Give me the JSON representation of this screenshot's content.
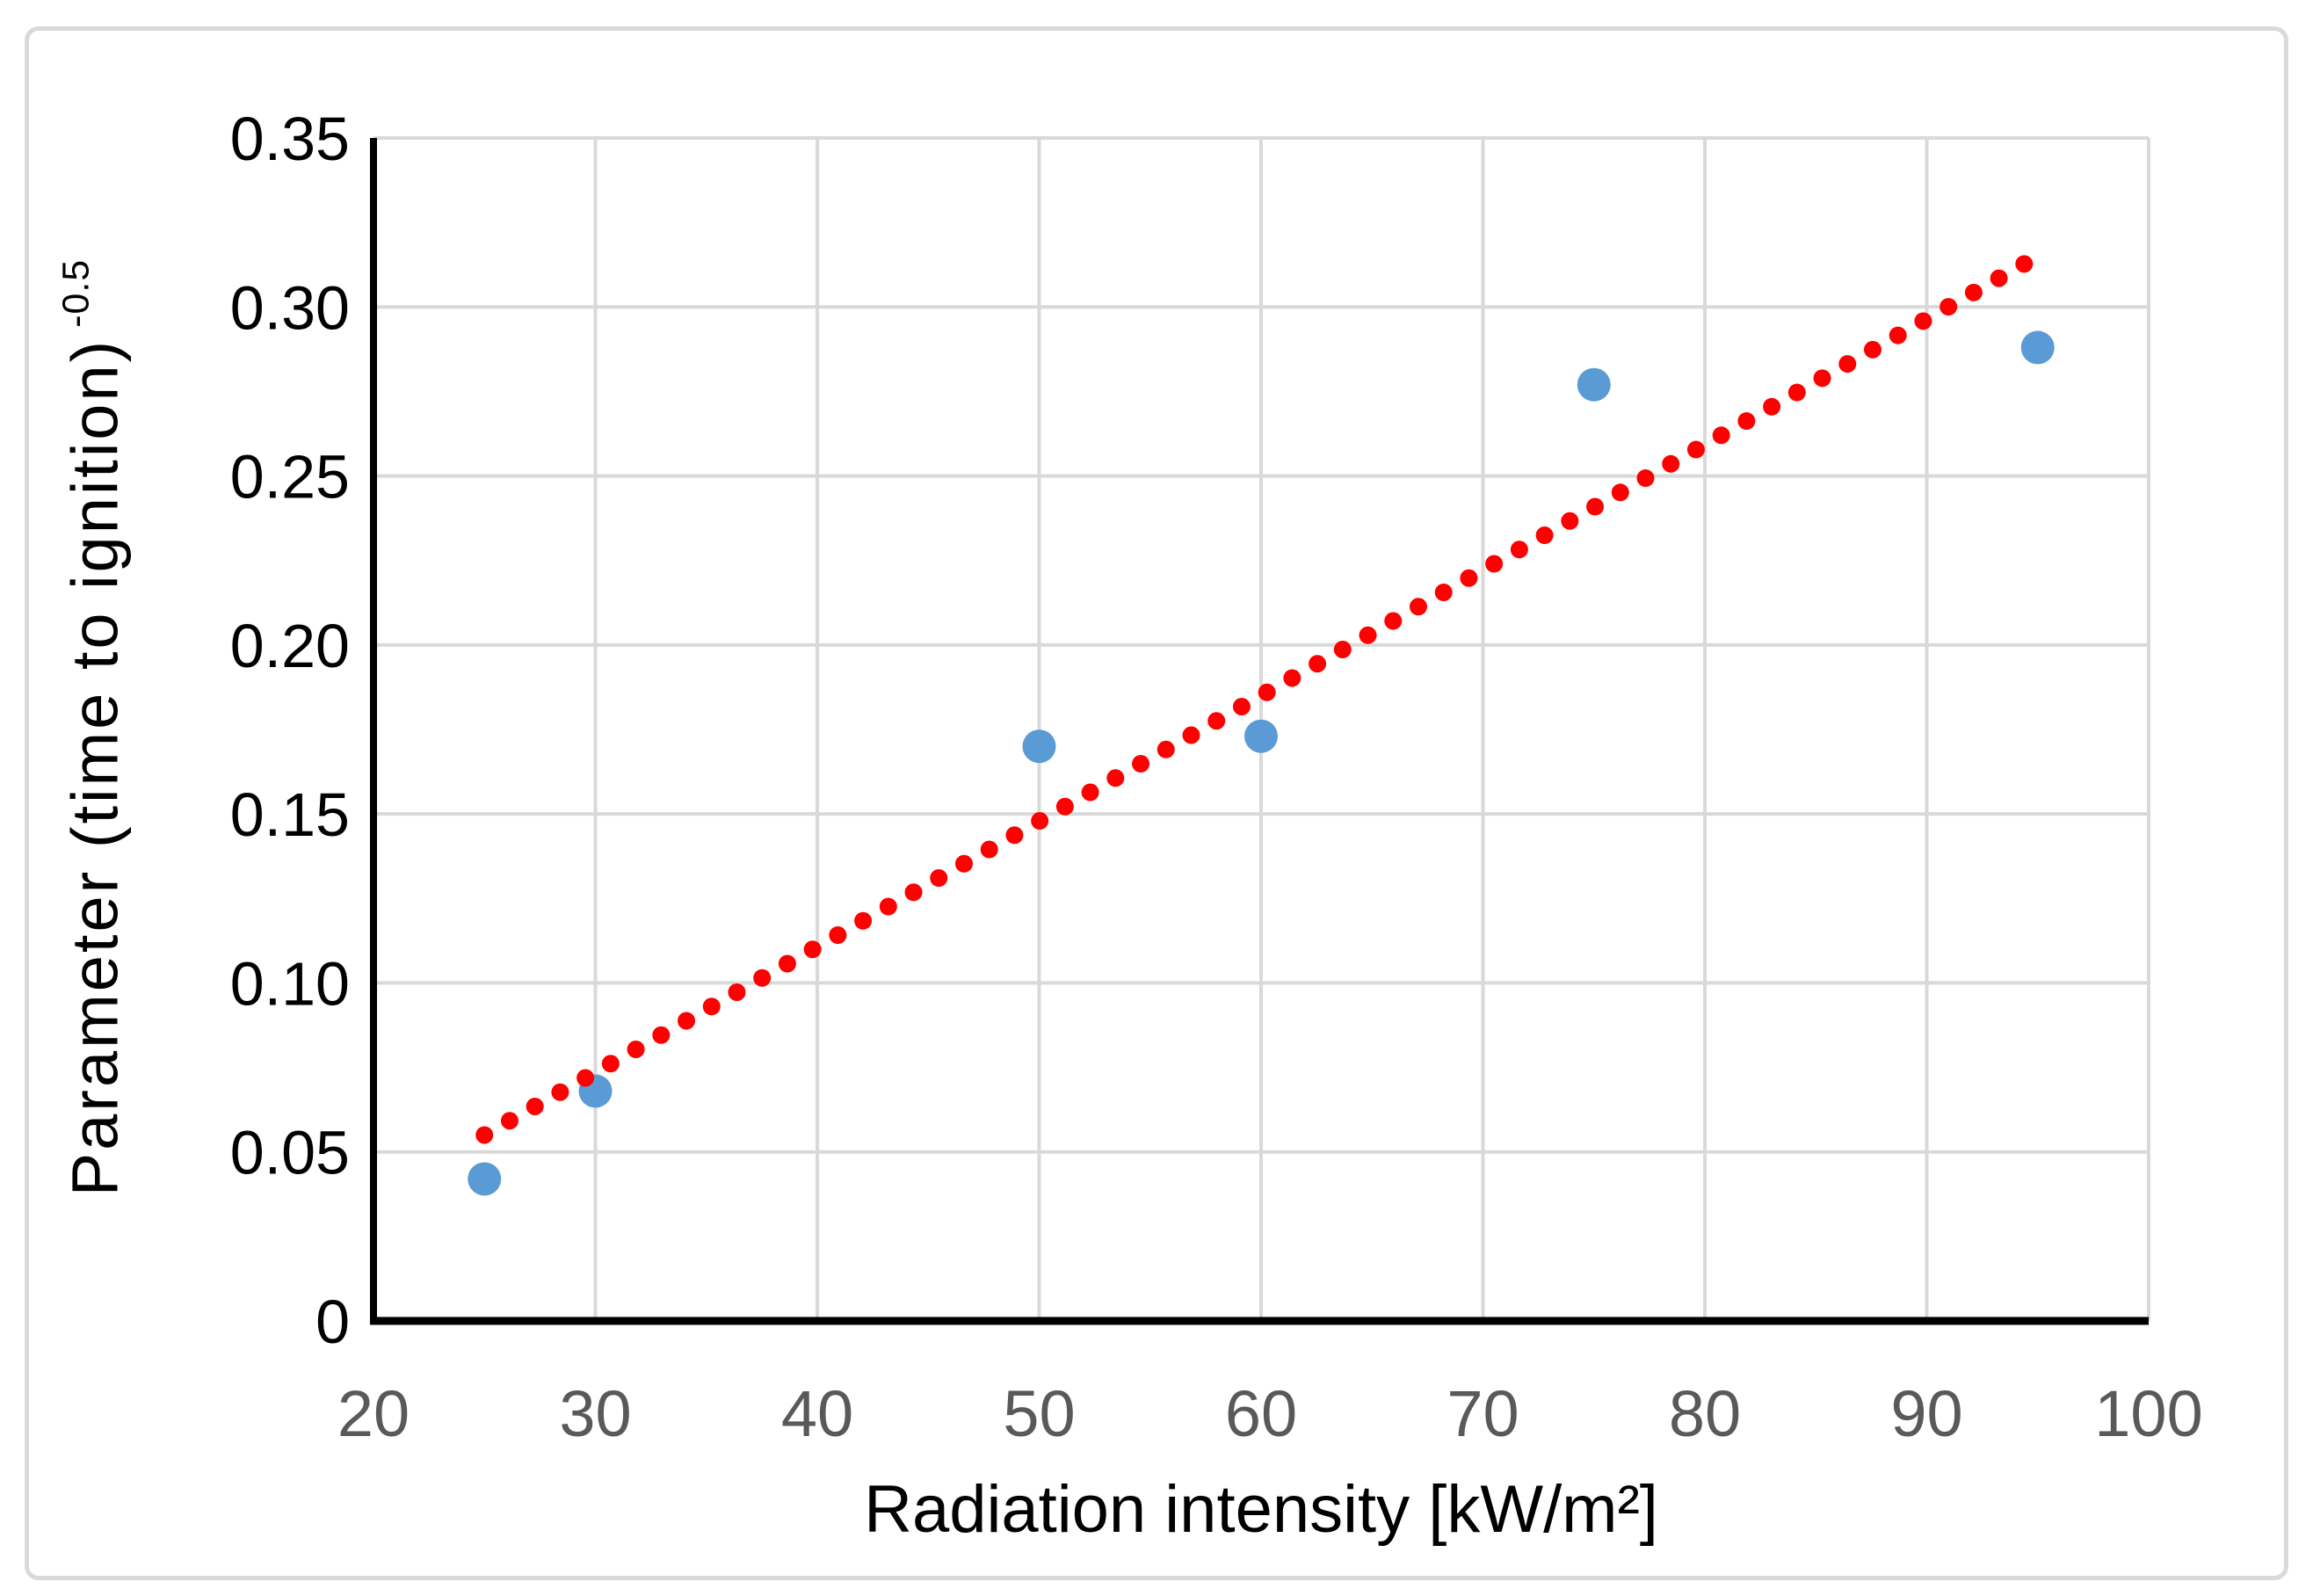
{
  "chart_data": {
    "type": "scatter",
    "title": "",
    "xlabel": "Radiation intensity [kW/m²]",
    "ylabel_base": "Parameter (time to ignition)",
    "ylabel_superscript": "-0.5",
    "xlim": [
      20,
      100
    ],
    "ylim": [
      0,
      0.35
    ],
    "grid": true,
    "legend": false,
    "x_ticks": [
      {
        "value": 20,
        "label": "20"
      },
      {
        "value": 30,
        "label": "30"
      },
      {
        "value": 40,
        "label": "40"
      },
      {
        "value": 50,
        "label": "50"
      },
      {
        "value": 60,
        "label": "60"
      },
      {
        "value": 70,
        "label": "70"
      },
      {
        "value": 80,
        "label": "80"
      },
      {
        "value": 90,
        "label": "90"
      },
      {
        "value": 100,
        "label": "100"
      }
    ],
    "y_ticks": [
      {
        "value": 0,
        "label": "0"
      },
      {
        "value": 0.05,
        "label": "0.05"
      },
      {
        "value": 0.1,
        "label": "0.10"
      },
      {
        "value": 0.15,
        "label": "0.15"
      },
      {
        "value": 0.2,
        "label": "0.20"
      },
      {
        "value": 0.25,
        "label": "0.25"
      },
      {
        "value": 0.3,
        "label": "0.30"
      },
      {
        "value": 0.35,
        "label": "0.35"
      }
    ],
    "series": [
      {
        "name": "measured-points",
        "type": "scatter",
        "color": "#5B9BD5",
        "points": [
          {
            "x": 25,
            "y": 0.042
          },
          {
            "x": 30,
            "y": 0.068
          },
          {
            "x": 50,
            "y": 0.17
          },
          {
            "x": 60,
            "y": 0.173
          },
          {
            "x": 75,
            "y": 0.277
          },
          {
            "x": 95,
            "y": 0.288
          }
        ]
      },
      {
        "name": "linear-trendline",
        "type": "line",
        "style": "dotted",
        "color": "#FF0000",
        "points": [
          {
            "x": 25,
            "y": 0.055
          },
          {
            "x": 95,
            "y": 0.315
          }
        ]
      }
    ],
    "colors": {
      "marker": "#5B9BD5",
      "trendline": "#FF0000",
      "gridline": "#D9D9D9",
      "axis": "#000000",
      "x_tick_text": "#595959",
      "y_tick_text": "#000000",
      "border": "#D9D9D9"
    }
  }
}
